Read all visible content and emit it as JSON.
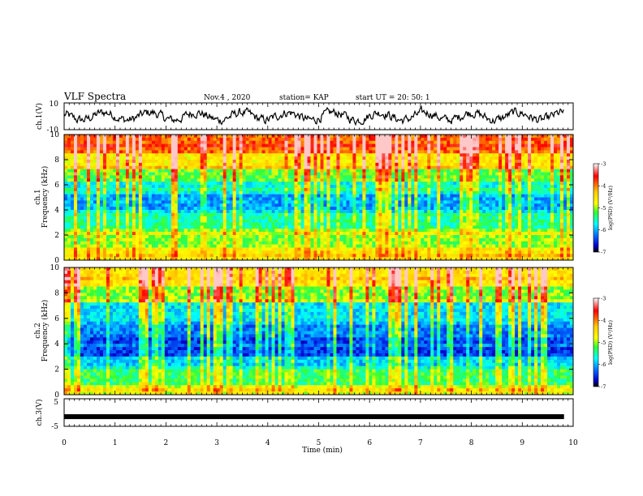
{
  "header": {
    "title": "VLF  Spectra",
    "date": "Nov.4  , 2020",
    "station": "station= KAP",
    "start": "start  UT  =   20: 50: 1"
  },
  "chart_data": [
    {
      "type": "line",
      "panel": "ch1-waveform",
      "ylabel": "ch.1(V)",
      "ylim": [
        -10,
        10
      ],
      "yticks": [
        "10",
        "-10"
      ],
      "x_range": [
        0,
        9.82
      ],
      "color": "#000000",
      "description_values": "noisy waveform oscillating mostly between about -5 and 5 V"
    },
    {
      "type": "heatmap",
      "panel": "ch1-spectrogram",
      "ylabel": "ch.1 Frequency (kHz)",
      "ylabel_lines": [
        "ch.1",
        "Frequency  (kHz)"
      ],
      "ylim": [
        0,
        10
      ],
      "yticks": [
        "0",
        "2",
        "4",
        "6",
        "8",
        "10"
      ],
      "colorbar": {
        "label": "log(PSD) (V²/Hz)",
        "range": [
          -7,
          -3
        ],
        "ticks": [
          "-3",
          "-4",
          "-5",
          "-6",
          "-7"
        ]
      }
    },
    {
      "type": "heatmap",
      "panel": "ch2-spectrogram",
      "ylabel": "ch.2 Frequency (kHz)",
      "ylabel_lines": [
        "ch.2",
        "Frequency  (kHz)"
      ],
      "ylim": [
        0,
        10
      ],
      "yticks": [
        "0",
        "2",
        "4",
        "6",
        "8",
        "10"
      ],
      "colorbar": {
        "label": "log(PSD) (V²/Hz)",
        "range": [
          -7,
          -3
        ],
        "ticks": [
          "-3",
          "-4",
          "-5",
          "-6",
          "-7"
        ]
      }
    },
    {
      "type": "line",
      "panel": "ch3-waveform",
      "ylabel": "ch.3(V)",
      "ylim": [
        -5,
        5
      ],
      "yticks": [
        "5",
        "-5"
      ],
      "x": [
        0,
        9.82
      ],
      "y": [
        -1.5,
        -1.5
      ],
      "color": "#000000"
    }
  ],
  "xaxis": {
    "label": "Time  (min)",
    "ticks": [
      "0",
      "1",
      "2",
      "3",
      "4",
      "5",
      "6",
      "7",
      "8",
      "9",
      "10"
    ],
    "xlim": [
      0,
      10
    ]
  },
  "colorbar_label": "log(PSD) (V²/Hz)"
}
